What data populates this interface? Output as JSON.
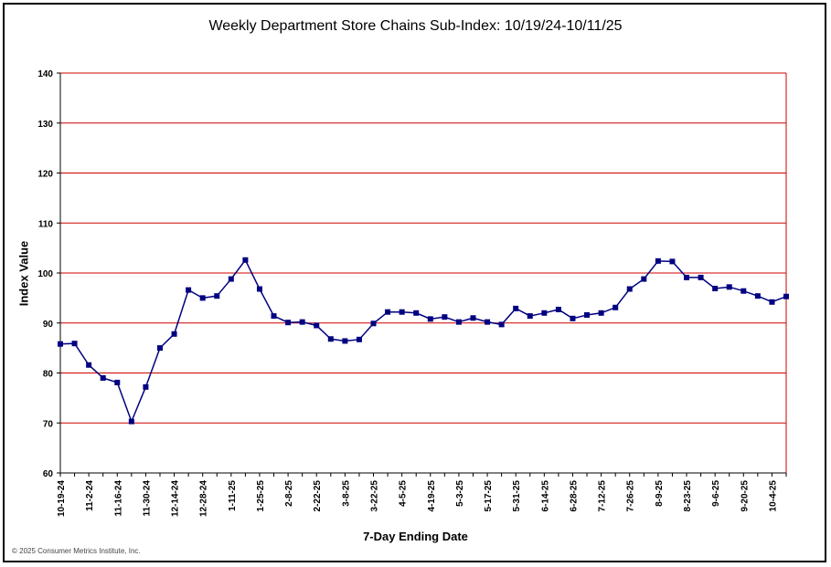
{
  "chart_data": {
    "type": "line",
    "title": "Weekly Department Store Chains Sub-Index: 10/19/24-10/11/25",
    "xlabel": "7-Day Ending Date",
    "ylabel": "Index Value",
    "ylim": [
      60,
      140
    ],
    "yticks": [
      60,
      70,
      80,
      90,
      100,
      110,
      120,
      130,
      140
    ],
    "grid": true,
    "colors": {
      "line": "#000080",
      "marker": "#000080",
      "grid": "#cc0000",
      "axis": "#000000"
    },
    "x_tick_labels": [
      "10-19-24",
      "11-2-24",
      "11-16-24",
      "11-30-24",
      "12-14-24",
      "12-28-24",
      "1-11-25",
      "1-25-25",
      "2-8-25",
      "2-22-25",
      "3-8-25",
      "3-22-25",
      "4-5-25",
      "4-19-25",
      "5-3-25",
      "5-17-25",
      "5-31-25",
      "6-14-25",
      "6-28-25",
      "7-12-25",
      "7-26-25",
      "8-9-25",
      "8-23-25",
      "9-6-25",
      "9-20-25",
      "10-4-25"
    ],
    "series": [
      {
        "name": "Department Store Chains Sub-Index",
        "values": [
          85.8,
          85.9,
          81.6,
          79.0,
          78.1,
          70.3,
          77.2,
          85.0,
          87.8,
          96.6,
          95.0,
          95.4,
          98.8,
          102.6,
          96.8,
          91.4,
          90.1,
          90.2,
          89.5,
          86.8,
          86.4,
          86.7,
          89.9,
          92.2,
          92.2,
          92.0,
          90.8,
          91.2,
          90.2,
          91.0,
          90.2,
          89.7,
          92.9,
          91.4,
          92.0,
          92.7,
          90.9,
          91.6,
          92.0,
          93.1,
          96.8,
          98.8,
          102.4,
          102.3,
          99.1,
          99.1,
          96.9,
          97.2,
          96.4,
          95.4,
          94.2,
          95.3
        ]
      }
    ]
  },
  "copyright": "© 2025 Consumer Metrics Institute, Inc."
}
